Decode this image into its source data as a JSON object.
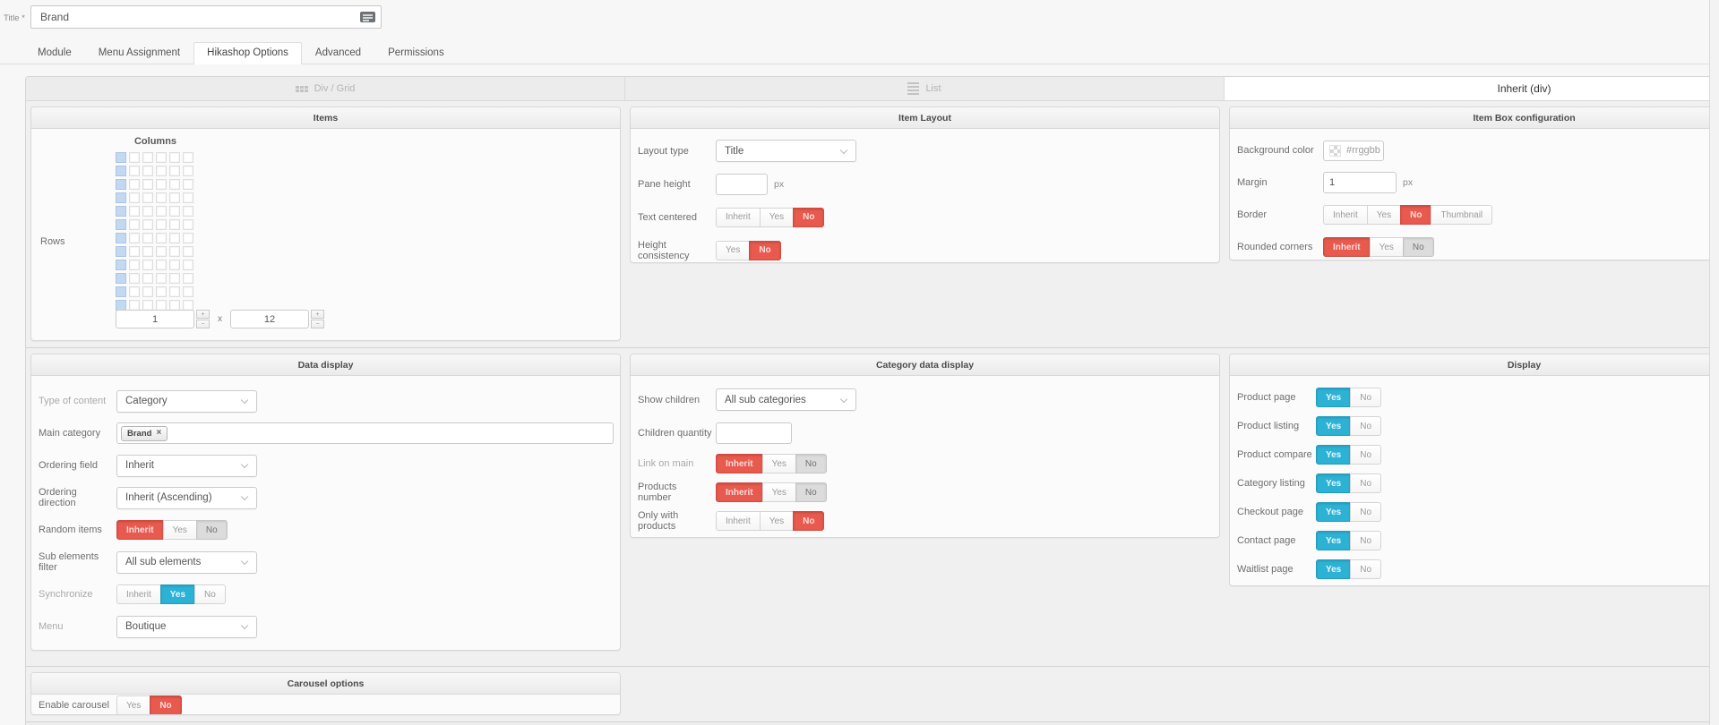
{
  "colors": {
    "accent_red": "#e8594e",
    "accent_blue": "#2cb2d5",
    "grid_selected": "#c3d9f2"
  },
  "title_field": {
    "label": "Title *",
    "value": "Brand"
  },
  "tabs": {
    "items": [
      {
        "label": "Module",
        "active": false
      },
      {
        "label": "Menu Assignment",
        "active": false
      },
      {
        "label": "Hikashop Options",
        "active": true
      },
      {
        "label": "Advanced",
        "active": false
      },
      {
        "label": "Permissions",
        "active": false
      }
    ]
  },
  "type_selector": {
    "options": [
      {
        "label": "Div / Grid",
        "icon": "grid-icon",
        "active": false
      },
      {
        "label": "List",
        "icon": "list-icon",
        "active": false
      },
      {
        "label": "Inherit (div)",
        "icon": "",
        "active": true
      }
    ]
  },
  "items_panel": {
    "title": "Items",
    "rows_label": "Rows",
    "columns_label": "Columns",
    "grid": {
      "columns": 6,
      "rows": 12,
      "selected_columns": 1
    },
    "columns_value": "1",
    "separator": "x",
    "rows_value": "12",
    "spinner_up": "+",
    "spinner_down": "−"
  },
  "item_layout_panel": {
    "title": "Item Layout",
    "layout_type": {
      "label": "Layout type",
      "value": "Title"
    },
    "pane_height": {
      "label": "Pane height",
      "value": "",
      "unit": "px"
    },
    "text_centered": {
      "label": "Text centered",
      "options": [
        "Inherit",
        "Yes",
        "No"
      ],
      "selected": "No"
    },
    "height_consistency": {
      "label": "Height consistency",
      "options": [
        "Yes",
        "No"
      ],
      "selected": "No"
    }
  },
  "item_box_panel": {
    "title": "Item Box configuration",
    "background_color": {
      "label": "Background color",
      "placeholder": "#rrggbb"
    },
    "margin": {
      "label": "Margin",
      "value": "1",
      "unit": "px"
    },
    "border": {
      "label": "Border",
      "options": [
        "Inherit",
        "Yes",
        "No",
        "Thumbnail"
      ],
      "selected": "No"
    },
    "rounded_corners": {
      "label": "Rounded corners",
      "options": [
        "Inherit",
        "Yes",
        "No"
      ],
      "selected": "Inherit",
      "inherited_value": "No"
    }
  },
  "data_display_panel": {
    "title": "Data display",
    "type_of_content": {
      "label": "Type of content",
      "value": "Category"
    },
    "main_category": {
      "label": "Main category",
      "tag": "Brand",
      "remove": "×"
    },
    "ordering_field": {
      "label": "Ordering field",
      "value": "Inherit"
    },
    "ordering_direction": {
      "label": "Ordering direction",
      "value": "Inherit (Ascending)"
    },
    "random_items": {
      "label": "Random items",
      "options": [
        "Inherit",
        "Yes",
        "No"
      ],
      "selected": "Inherit",
      "inherited_value": "No"
    },
    "sub_elements_filter": {
      "label": "Sub elements filter",
      "value": "All sub elements"
    },
    "synchronize": {
      "label": "Synchronize",
      "options": [
        "Inherit",
        "Yes",
        "No"
      ],
      "selected": "Yes"
    },
    "menu": {
      "label": "Menu",
      "value": "Boutique"
    }
  },
  "category_data_display_panel": {
    "title": "Category data display",
    "show_children": {
      "label": "Show children",
      "value": "All sub categories"
    },
    "children_quantity": {
      "label": "Children quantity",
      "value": ""
    },
    "link_on_main": {
      "label": "Link on main",
      "options": [
        "Inherit",
        "Yes",
        "No"
      ],
      "selected": "Inherit",
      "inherited_value": "No"
    },
    "products_number": {
      "label": "Products number",
      "options": [
        "Inherit",
        "Yes",
        "No"
      ],
      "selected": "Inherit",
      "inherited_value": "No"
    },
    "only_with_products": {
      "label": "Only with products",
      "options": [
        "Inherit",
        "Yes",
        "No"
      ],
      "selected": "No"
    }
  },
  "display_panel": {
    "title": "Display",
    "yes_label": "Yes",
    "no_label": "No",
    "rows": [
      {
        "label": "Product page",
        "selected": "Yes"
      },
      {
        "label": "Product listing",
        "selected": "Yes"
      },
      {
        "label": "Product compare",
        "selected": "Yes"
      },
      {
        "label": "Category listing",
        "selected": "Yes"
      },
      {
        "label": "Checkout page",
        "selected": "Yes"
      },
      {
        "label": "Contact page",
        "selected": "Yes"
      },
      {
        "label": "Waitlist page",
        "selected": "Yes"
      }
    ]
  },
  "carousel_panel": {
    "title": "Carousel options",
    "enable_carousel": {
      "label": "Enable carousel",
      "options": [
        "Yes",
        "No"
      ],
      "selected": "No"
    }
  }
}
